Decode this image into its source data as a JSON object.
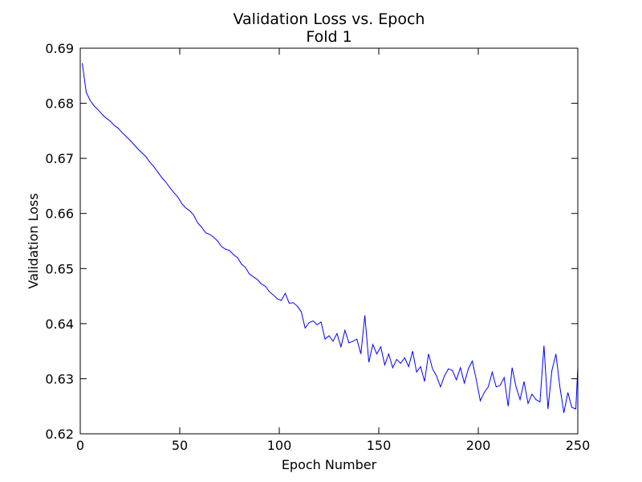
{
  "chart_data": {
    "type": "line",
    "title": "Validation Loss vs. Epoch",
    "subtitle": "Fold 1",
    "xlabel": "Epoch Number",
    "ylabel": "Validation Loss",
    "xlim": [
      0,
      250
    ],
    "ylim": [
      0.62,
      0.69
    ],
    "xticks": [
      0,
      50,
      100,
      150,
      200,
      250
    ],
    "yticks": [
      0.62,
      0.63,
      0.64,
      0.65,
      0.66,
      0.67,
      0.68,
      0.69
    ],
    "grid": false,
    "x": [
      1,
      3,
      5,
      7,
      9,
      11,
      13,
      15,
      17,
      19,
      21,
      23,
      25,
      27,
      29,
      31,
      33,
      35,
      37,
      39,
      41,
      43,
      45,
      47,
      49,
      51,
      53,
      55,
      57,
      59,
      61,
      63,
      65,
      67,
      69,
      71,
      73,
      75,
      77,
      79,
      81,
      83,
      85,
      87,
      89,
      91,
      93,
      95,
      97,
      99,
      101,
      103,
      105,
      107,
      109,
      111,
      113,
      115,
      117,
      119,
      121,
      123,
      125,
      127,
      129,
      131,
      133,
      135,
      137,
      139,
      141,
      143,
      145,
      147,
      149,
      151,
      153,
      155,
      157,
      159,
      161,
      163,
      165,
      167,
      169,
      171,
      173,
      175,
      177,
      179,
      181,
      183,
      185,
      187,
      189,
      191,
      193,
      195,
      197,
      199,
      201,
      203,
      205,
      207,
      209,
      211,
      213,
      215,
      217,
      219,
      221,
      223,
      225,
      227,
      229,
      231,
      233,
      235,
      237,
      239,
      241,
      243,
      245,
      247,
      249,
      250
    ],
    "series": [
      {
        "name": "Validation Loss",
        "color": "#0000ff",
        "values": [
          0.6873,
          0.682,
          0.6805,
          0.6795,
          0.6788,
          0.678,
          0.6773,
          0.6768,
          0.676,
          0.6755,
          0.6747,
          0.674,
          0.6733,
          0.6725,
          0.6717,
          0.671,
          0.6703,
          0.6693,
          0.6685,
          0.6675,
          0.6665,
          0.6657,
          0.6647,
          0.6638,
          0.663,
          0.6618,
          0.661,
          0.6605,
          0.6597,
          0.6583,
          0.6575,
          0.6565,
          0.6562,
          0.6557,
          0.655,
          0.654,
          0.6535,
          0.6533,
          0.6525,
          0.652,
          0.6508,
          0.6502,
          0.649,
          0.6485,
          0.648,
          0.6472,
          0.6468,
          0.6458,
          0.6452,
          0.6445,
          0.6442,
          0.6455,
          0.6437,
          0.6438,
          0.6432,
          0.6422,
          0.6392,
          0.6402,
          0.6405,
          0.6398,
          0.6403,
          0.6372,
          0.6378,
          0.6368,
          0.6382,
          0.6358,
          0.6388,
          0.6365,
          0.6368,
          0.6372,
          0.6345,
          0.6415,
          0.633,
          0.6362,
          0.6345,
          0.6358,
          0.6325,
          0.6345,
          0.632,
          0.6335,
          0.6328,
          0.6338,
          0.6322,
          0.635,
          0.6312,
          0.6322,
          0.6295,
          0.6345,
          0.6318,
          0.6305,
          0.6285,
          0.6305,
          0.6318,
          0.6315,
          0.6298,
          0.632,
          0.6292,
          0.6318,
          0.6332,
          0.6298,
          0.626,
          0.6275,
          0.6285,
          0.6312,
          0.6285,
          0.6288,
          0.6302,
          0.625,
          0.632,
          0.6285,
          0.6262,
          0.6295,
          0.6255,
          0.6272,
          0.6262,
          0.6258,
          0.636,
          0.6245,
          0.6315,
          0.6345,
          0.6285,
          0.6238,
          0.6275,
          0.6248,
          0.6245,
          0.632
        ]
      }
    ]
  }
}
